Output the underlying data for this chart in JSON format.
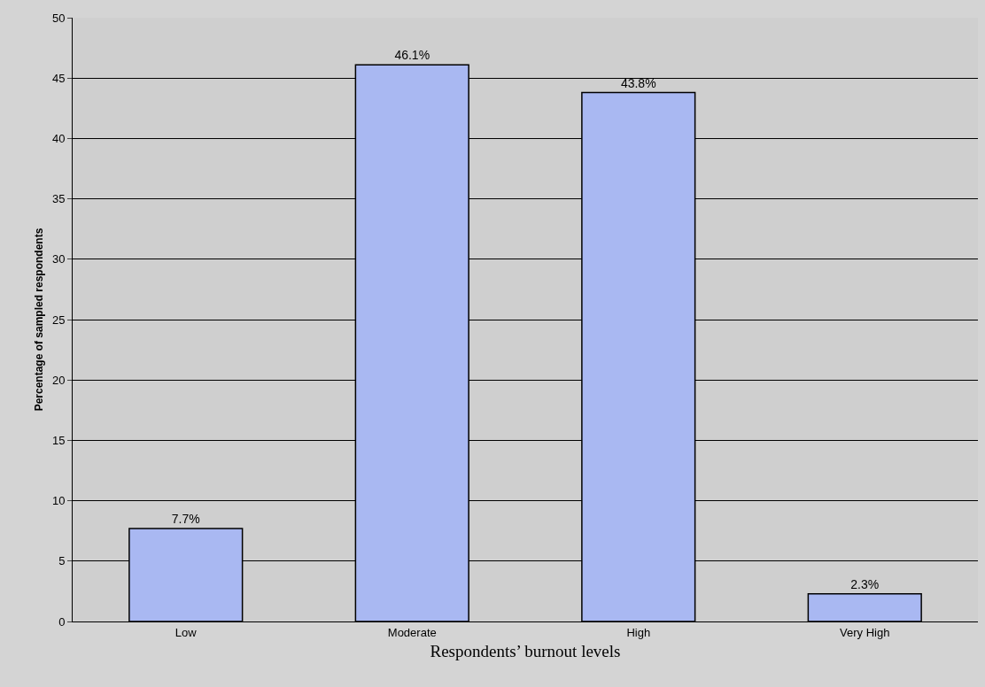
{
  "chart_data": {
    "type": "bar",
    "xlabel": "Respondents’ burnout levels",
    "ylabel": "Percentage of sampled respondents",
    "categories": [
      "Low",
      "Moderate",
      "High",
      "Very High"
    ],
    "values": [
      7.7,
      46.1,
      43.8,
      2.3
    ],
    "value_labels": [
      "7.7%",
      "46.1%",
      "43.8%",
      "2.3%"
    ],
    "color": "#a9b8f2",
    "ylim": [
      0,
      50
    ],
    "yticks": [
      0,
      5,
      10,
      15,
      20,
      25,
      30,
      35,
      40,
      45,
      50
    ],
    "grid": "y"
  }
}
